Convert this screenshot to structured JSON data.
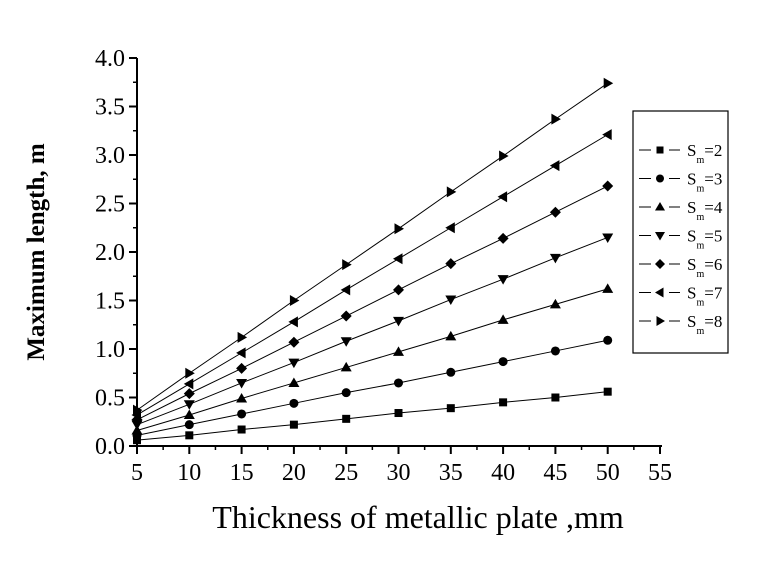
{
  "chart_data": {
    "type": "line",
    "title": "",
    "xlabel": "Thickness of metallic plate ,mm",
    "ylabel": "Maximum length,  m",
    "xlim": [
      5,
      55
    ],
    "ylim": [
      0,
      4.0
    ],
    "xticks": [
      "5",
      "10",
      "15",
      "20",
      "25",
      "30",
      "35",
      "40",
      "45",
      "50",
      "55"
    ],
    "yticks": [
      "0.0",
      "0.5",
      "1.0",
      "1.5",
      "2.0",
      "2.5",
      "3.0",
      "3.5",
      "4.0"
    ],
    "grid": false,
    "legend_position": "right",
    "x": [
      5,
      10,
      15,
      20,
      25,
      30,
      35,
      40,
      45,
      50
    ],
    "series": [
      {
        "name": "Sm=2",
        "sub_base": "S",
        "sub": "m",
        "suffix": "=2",
        "marker": "square",
        "values": [
          0.06,
          0.11,
          0.17,
          0.22,
          0.28,
          0.34,
          0.39,
          0.45,
          0.5,
          0.56
        ]
      },
      {
        "name": "Sm=3",
        "sub_base": "S",
        "sub": "m",
        "suffix": "=3",
        "marker": "circle",
        "values": [
          0.11,
          0.22,
          0.33,
          0.44,
          0.55,
          0.65,
          0.76,
          0.87,
          0.98,
          1.09
        ]
      },
      {
        "name": "Sm=4",
        "sub_base": "S",
        "sub": "m",
        "suffix": "=4",
        "marker": "triangle-up",
        "values": [
          0.16,
          0.32,
          0.49,
          0.65,
          0.81,
          0.97,
          1.13,
          1.3,
          1.46,
          1.62
        ]
      },
      {
        "name": "Sm=5",
        "sub_base": "S",
        "sub": "m",
        "suffix": "=5",
        "marker": "triangle-down",
        "values": [
          0.22,
          0.43,
          0.65,
          0.86,
          1.08,
          1.29,
          1.51,
          1.72,
          1.94,
          2.15
        ]
      },
      {
        "name": "Sm=6",
        "sub_base": "S",
        "sub": "m",
        "suffix": "=6",
        "marker": "diamond",
        "values": [
          0.27,
          0.54,
          0.8,
          1.07,
          1.34,
          1.61,
          1.88,
          2.14,
          2.41,
          2.68
        ]
      },
      {
        "name": "Sm=7",
        "sub_base": "S",
        "sub": "m",
        "suffix": "=7",
        "marker": "triangle-left",
        "values": [
          0.32,
          0.64,
          0.96,
          1.28,
          1.61,
          1.93,
          2.25,
          2.57,
          2.89,
          3.21
        ]
      },
      {
        "name": "Sm=8",
        "sub_base": "S",
        "sub": "m",
        "suffix": "=8",
        "marker": "triangle-right",
        "values": [
          0.37,
          0.75,
          1.12,
          1.5,
          1.87,
          2.24,
          2.62,
          2.99,
          3.37,
          3.74
        ]
      }
    ],
    "colors": {
      "line": "#000000",
      "marker": "#000000"
    }
  }
}
